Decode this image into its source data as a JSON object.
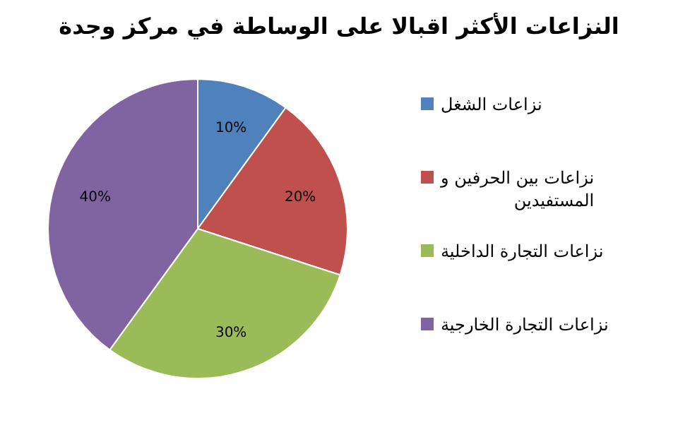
{
  "chart_data": {
    "type": "pie",
    "title": "النزاعات الأكثر اقبالا على الوساطة في مركز وجدة",
    "categories": [
      "نزاعات الشغل",
      "نزاعات بين الحرفين و المستفيدين",
      "نزاعات التجارة الداخلية",
      "نزاعات التجارة الخارجية"
    ],
    "values": [
      10,
      20,
      30,
      40
    ],
    "value_labels": [
      "10%",
      "20%",
      "30%",
      "40%"
    ],
    "colors": [
      "#4f81bd",
      "#c0504d",
      "#9bbb59",
      "#8064a2"
    ],
    "legend": "right"
  }
}
